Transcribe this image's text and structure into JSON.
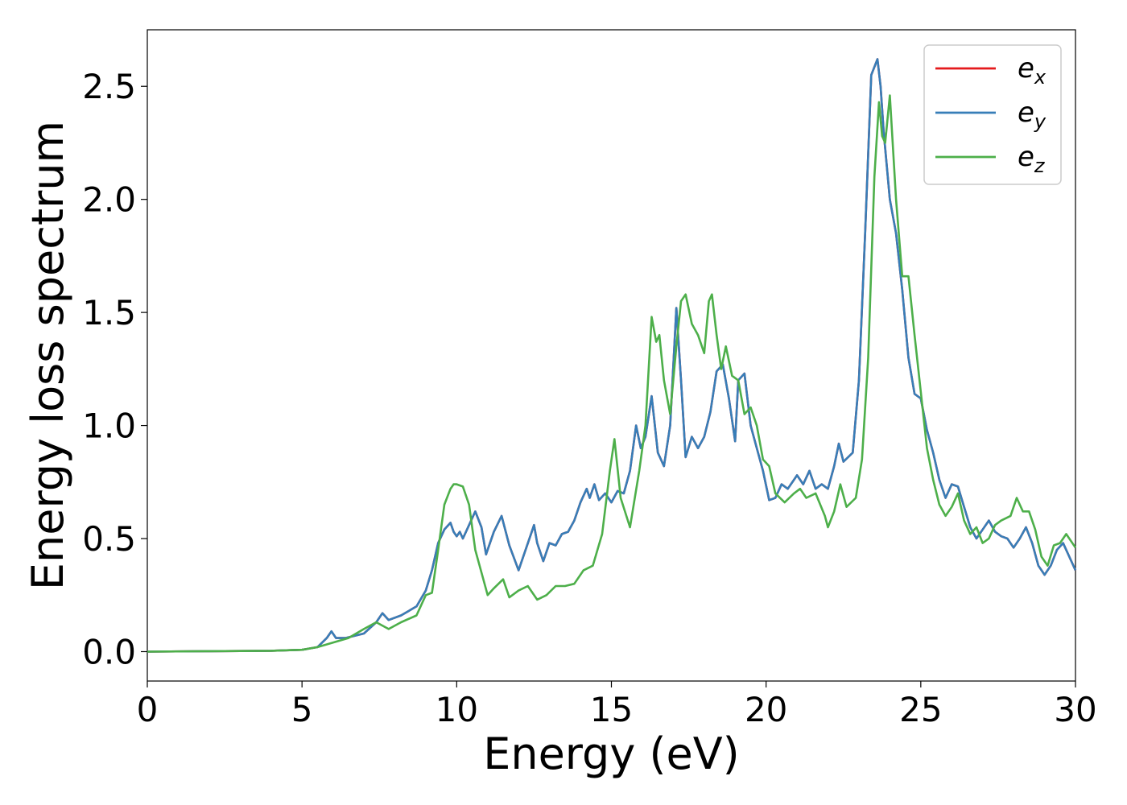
{
  "chart_data": {
    "type": "line",
    "xlabel": "Energy (eV)",
    "ylabel": "Energy loss spectrum",
    "xlim": [
      0,
      30
    ],
    "ylim": [
      -0.13,
      2.75
    ],
    "xticks": [
      0,
      5,
      10,
      15,
      20,
      25,
      30
    ],
    "yticks": [
      0.0,
      0.5,
      1.0,
      1.5,
      2.0,
      2.5
    ],
    "xtick_labels": [
      "0",
      "5",
      "10",
      "15",
      "20",
      "25",
      "30"
    ],
    "ytick_labels": [
      "0.0",
      "0.5",
      "1.0",
      "1.5",
      "2.0",
      "2.5"
    ],
    "grid": false,
    "legend_position": "top-right",
    "series": [
      {
        "name": "e_x",
        "legend_base": "e",
        "legend_sub": "x",
        "color": "#e41a1c",
        "x": [
          0,
          2,
          4,
          5,
          5.5,
          5.8,
          5.95,
          6.1,
          6.4,
          7,
          7.4,
          7.6,
          7.8,
          8.2,
          8.7,
          9.0,
          9.2,
          9.4,
          9.6,
          9.8,
          9.9,
          10.0,
          10.1,
          10.2,
          10.4,
          10.6,
          10.8,
          10.95,
          11.2,
          11.45,
          11.7,
          12.0,
          12.2,
          12.4,
          12.5,
          12.6,
          12.8,
          13.0,
          13.2,
          13.4,
          13.6,
          13.8,
          14.0,
          14.2,
          14.3,
          14.45,
          14.6,
          14.8,
          15.0,
          15.2,
          15.4,
          15.6,
          15.8,
          15.95,
          16.1,
          16.3,
          16.5,
          16.7,
          16.9,
          17.1,
          17.25,
          17.4,
          17.6,
          17.8,
          18.0,
          18.2,
          18.4,
          18.6,
          18.8,
          19.0,
          19.1,
          19.3,
          19.5,
          19.7,
          19.9,
          20.1,
          20.3,
          20.5,
          20.7,
          20.9,
          21.0,
          21.2,
          21.4,
          21.6,
          21.8,
          22.0,
          22.2,
          22.35,
          22.5,
          22.8,
          23.0,
          23.2,
          23.4,
          23.6,
          23.7,
          23.8,
          24.0,
          24.2,
          24.4,
          24.6,
          24.8,
          25.0,
          25.2,
          25.4,
          25.6,
          25.8,
          26.0,
          26.2,
          26.4,
          26.6,
          26.8,
          27.0,
          27.2,
          27.4,
          27.6,
          27.8,
          28.0,
          28.2,
          28.4,
          28.6,
          28.8,
          29.0,
          29.2,
          29.4,
          29.6,
          29.8,
          30.0
        ],
        "y": [
          0.0,
          0.002,
          0.004,
          0.008,
          0.02,
          0.06,
          0.09,
          0.06,
          0.06,
          0.08,
          0.13,
          0.17,
          0.14,
          0.16,
          0.2,
          0.27,
          0.36,
          0.48,
          0.54,
          0.57,
          0.53,
          0.51,
          0.53,
          0.5,
          0.56,
          0.62,
          0.55,
          0.43,
          0.53,
          0.6,
          0.47,
          0.36,
          0.44,
          0.52,
          0.56,
          0.48,
          0.4,
          0.48,
          0.47,
          0.52,
          0.53,
          0.58,
          0.66,
          0.72,
          0.68,
          0.74,
          0.67,
          0.7,
          0.66,
          0.71,
          0.7,
          0.8,
          1.0,
          0.9,
          0.95,
          1.13,
          0.88,
          0.82,
          1.0,
          1.52,
          1.2,
          0.86,
          0.95,
          0.9,
          0.95,
          1.06,
          1.24,
          1.27,
          1.12,
          0.93,
          1.2,
          1.23,
          1.0,
          0.9,
          0.8,
          0.67,
          0.68,
          0.74,
          0.72,
          0.76,
          0.78,
          0.74,
          0.8,
          0.72,
          0.74,
          0.72,
          0.82,
          0.92,
          0.84,
          0.88,
          1.2,
          1.85,
          2.55,
          2.62,
          2.5,
          2.3,
          2.0,
          1.85,
          1.6,
          1.3,
          1.14,
          1.12,
          0.98,
          0.88,
          0.76,
          0.68,
          0.74,
          0.73,
          0.64,
          0.55,
          0.5,
          0.54,
          0.58,
          0.53,
          0.51,
          0.5,
          0.46,
          0.5,
          0.55,
          0.48,
          0.38,
          0.34,
          0.38,
          0.45,
          0.48,
          0.42,
          0.36
        ]
      },
      {
        "name": "e_y",
        "legend_base": "e",
        "legend_sub": "y",
        "color": "#377eb8",
        "x": [
          0,
          2,
          4,
          5,
          5.5,
          5.8,
          5.95,
          6.1,
          6.4,
          7,
          7.4,
          7.6,
          7.8,
          8.2,
          8.7,
          9.0,
          9.2,
          9.4,
          9.6,
          9.8,
          9.9,
          10.0,
          10.1,
          10.2,
          10.4,
          10.6,
          10.8,
          10.95,
          11.2,
          11.45,
          11.7,
          12.0,
          12.2,
          12.4,
          12.5,
          12.6,
          12.8,
          13.0,
          13.2,
          13.4,
          13.6,
          13.8,
          14.0,
          14.2,
          14.3,
          14.45,
          14.6,
          14.8,
          15.0,
          15.2,
          15.4,
          15.6,
          15.8,
          15.95,
          16.1,
          16.3,
          16.5,
          16.7,
          16.9,
          17.1,
          17.25,
          17.4,
          17.6,
          17.8,
          18.0,
          18.2,
          18.4,
          18.6,
          18.8,
          19.0,
          19.1,
          19.3,
          19.5,
          19.7,
          19.9,
          20.1,
          20.3,
          20.5,
          20.7,
          20.9,
          21.0,
          21.2,
          21.4,
          21.6,
          21.8,
          22.0,
          22.2,
          22.35,
          22.5,
          22.8,
          23.0,
          23.2,
          23.4,
          23.6,
          23.7,
          23.8,
          24.0,
          24.2,
          24.4,
          24.6,
          24.8,
          25.0,
          25.2,
          25.4,
          25.6,
          25.8,
          26.0,
          26.2,
          26.4,
          26.6,
          26.8,
          27.0,
          27.2,
          27.4,
          27.6,
          27.8,
          28.0,
          28.2,
          28.4,
          28.6,
          28.8,
          29.0,
          29.2,
          29.4,
          29.6,
          29.8,
          30.0
        ],
        "y": [
          0.0,
          0.002,
          0.004,
          0.008,
          0.02,
          0.06,
          0.09,
          0.06,
          0.06,
          0.08,
          0.13,
          0.17,
          0.14,
          0.16,
          0.2,
          0.27,
          0.36,
          0.48,
          0.54,
          0.57,
          0.53,
          0.51,
          0.53,
          0.5,
          0.56,
          0.62,
          0.55,
          0.43,
          0.53,
          0.6,
          0.47,
          0.36,
          0.44,
          0.52,
          0.56,
          0.48,
          0.4,
          0.48,
          0.47,
          0.52,
          0.53,
          0.58,
          0.66,
          0.72,
          0.68,
          0.74,
          0.67,
          0.7,
          0.66,
          0.71,
          0.7,
          0.8,
          1.0,
          0.9,
          0.95,
          1.13,
          0.88,
          0.82,
          1.0,
          1.52,
          1.2,
          0.86,
          0.95,
          0.9,
          0.95,
          1.06,
          1.24,
          1.27,
          1.12,
          0.93,
          1.2,
          1.23,
          1.0,
          0.9,
          0.8,
          0.67,
          0.68,
          0.74,
          0.72,
          0.76,
          0.78,
          0.74,
          0.8,
          0.72,
          0.74,
          0.72,
          0.82,
          0.92,
          0.84,
          0.88,
          1.2,
          1.85,
          2.55,
          2.62,
          2.5,
          2.3,
          2.0,
          1.85,
          1.6,
          1.3,
          1.14,
          1.12,
          0.98,
          0.88,
          0.76,
          0.68,
          0.74,
          0.73,
          0.64,
          0.55,
          0.5,
          0.54,
          0.58,
          0.53,
          0.51,
          0.5,
          0.46,
          0.5,
          0.55,
          0.48,
          0.38,
          0.34,
          0.38,
          0.45,
          0.48,
          0.42,
          0.36
        ]
      },
      {
        "name": "e_z",
        "legend_base": "e",
        "legend_sub": "z",
        "color": "#4daf4a",
        "x": [
          0,
          2,
          4,
          5,
          5.5,
          6.0,
          6.5,
          7.0,
          7.4,
          7.8,
          8.2,
          8.7,
          9.0,
          9.2,
          9.4,
          9.6,
          9.8,
          9.9,
          10.0,
          10.2,
          10.4,
          10.6,
          10.8,
          11.0,
          11.2,
          11.5,
          11.7,
          12.0,
          12.3,
          12.6,
          12.9,
          13.2,
          13.5,
          13.8,
          14.1,
          14.4,
          14.7,
          14.95,
          15.1,
          15.3,
          15.6,
          15.9,
          16.1,
          16.3,
          16.45,
          16.55,
          16.7,
          16.9,
          17.1,
          17.25,
          17.4,
          17.6,
          17.8,
          18.0,
          18.15,
          18.25,
          18.4,
          18.55,
          18.7,
          18.9,
          19.1,
          19.3,
          19.5,
          19.7,
          19.9,
          20.1,
          20.3,
          20.6,
          20.9,
          21.1,
          21.3,
          21.6,
          21.9,
          22.0,
          22.2,
          22.4,
          22.6,
          22.9,
          23.1,
          23.3,
          23.5,
          23.65,
          23.75,
          23.85,
          24.0,
          24.2,
          24.4,
          24.6,
          24.8,
          25.0,
          25.2,
          25.4,
          25.6,
          25.8,
          26.0,
          26.2,
          26.4,
          26.6,
          26.8,
          27.0,
          27.2,
          27.4,
          27.6,
          27.9,
          28.1,
          28.3,
          28.5,
          28.7,
          28.9,
          29.1,
          29.3,
          29.5,
          29.7,
          30.0
        ],
        "y": [
          0.0,
          0.002,
          0.004,
          0.008,
          0.02,
          0.04,
          0.06,
          0.1,
          0.13,
          0.1,
          0.13,
          0.16,
          0.25,
          0.26,
          0.45,
          0.65,
          0.72,
          0.74,
          0.74,
          0.73,
          0.65,
          0.45,
          0.35,
          0.25,
          0.28,
          0.32,
          0.24,
          0.27,
          0.29,
          0.23,
          0.25,
          0.29,
          0.29,
          0.3,
          0.36,
          0.38,
          0.52,
          0.8,
          0.94,
          0.68,
          0.55,
          0.8,
          1.0,
          1.48,
          1.37,
          1.4,
          1.2,
          1.05,
          1.35,
          1.55,
          1.58,
          1.45,
          1.4,
          1.32,
          1.55,
          1.58,
          1.4,
          1.25,
          1.35,
          1.22,
          1.2,
          1.05,
          1.08,
          1.0,
          0.85,
          0.82,
          0.7,
          0.66,
          0.7,
          0.72,
          0.68,
          0.7,
          0.6,
          0.55,
          0.62,
          0.74,
          0.64,
          0.68,
          0.85,
          1.3,
          2.1,
          2.43,
          2.28,
          2.25,
          2.46,
          2.0,
          1.66,
          1.66,
          1.4,
          1.15,
          0.9,
          0.76,
          0.65,
          0.6,
          0.64,
          0.7,
          0.58,
          0.52,
          0.55,
          0.48,
          0.5,
          0.56,
          0.58,
          0.6,
          0.68,
          0.62,
          0.62,
          0.54,
          0.42,
          0.38,
          0.47,
          0.48,
          0.52,
          0.46
        ]
      }
    ]
  }
}
